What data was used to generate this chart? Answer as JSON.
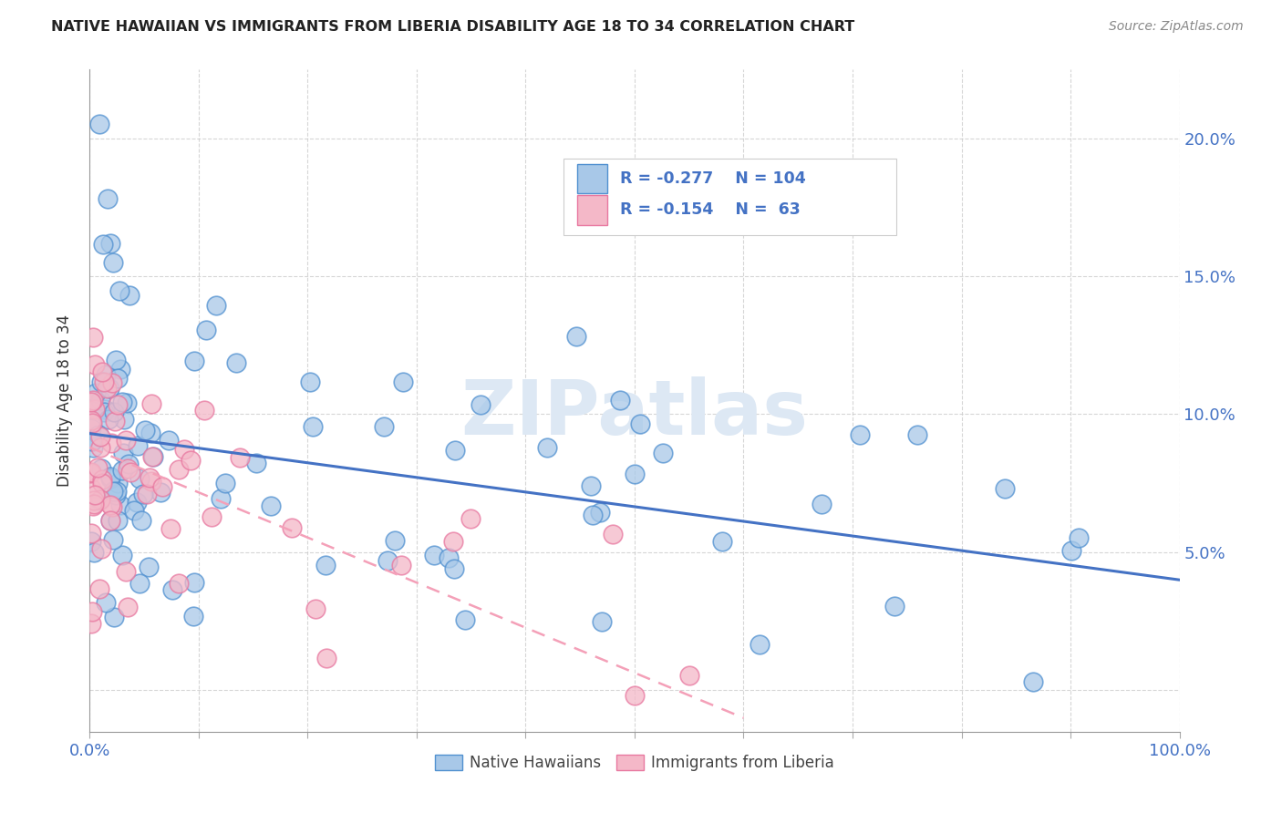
{
  "title": "NATIVE HAWAIIAN VS IMMIGRANTS FROM LIBERIA DISABILITY AGE 18 TO 34 CORRELATION CHART",
  "source": "Source: ZipAtlas.com",
  "ylabel": "Disability Age 18 to 34",
  "y_ticks": [
    0.0,
    0.05,
    0.1,
    0.15,
    0.2
  ],
  "y_tick_labels_right": [
    "",
    "5.0%",
    "10.0%",
    "15.0%",
    "20.0%"
  ],
  "x_min": 0.0,
  "x_max": 1.0,
  "y_min": -0.015,
  "y_max": 0.225,
  "blue_text_color": "#4472c4",
  "blue_dot_color": "#a8c8e8",
  "blue_dot_edge": "#5090d0",
  "pink_dot_color": "#f4b8c8",
  "pink_dot_edge": "#e878a0",
  "color_line_hawaiian": "#4472c4",
  "color_line_liberia": "#f4a0b8",
  "watermark_color": "#dde8f4",
  "legend_box_color": "#e8e8e8",
  "line_hawaiian_x0": 0.0,
  "line_hawaiian_x1": 1.0,
  "line_hawaiian_y0": 0.093,
  "line_hawaiian_y1": 0.04,
  "line_liberia_x0": 0.0,
  "line_liberia_x1": 0.6,
  "line_liberia_y0": 0.088,
  "line_liberia_y1": -0.01,
  "legend_r1": "R = -0.277",
  "legend_n1": "N = 104",
  "legend_r2": "R = -0.154",
  "legend_n2": "N =  63",
  "legend_label1": "Native Hawaiians",
  "legend_label2": "Immigrants from Liberia"
}
